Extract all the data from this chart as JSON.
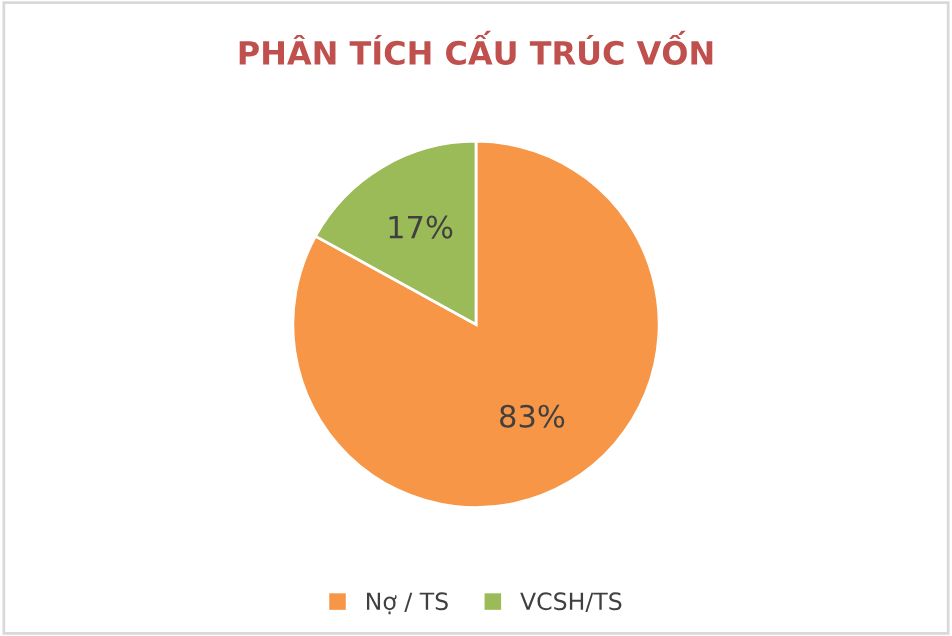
{
  "chart_data": {
    "type": "pie",
    "title": "PHÂN TÍCH CẤU TRÚC VỐN",
    "categories": [
      "Nợ / TS",
      "VCSH/TS"
    ],
    "values": [
      83,
      17
    ],
    "colors": [
      "#f79646",
      "#9bbb59"
    ],
    "value_labels": [
      "83%",
      "17%"
    ],
    "legend": "bottom"
  }
}
